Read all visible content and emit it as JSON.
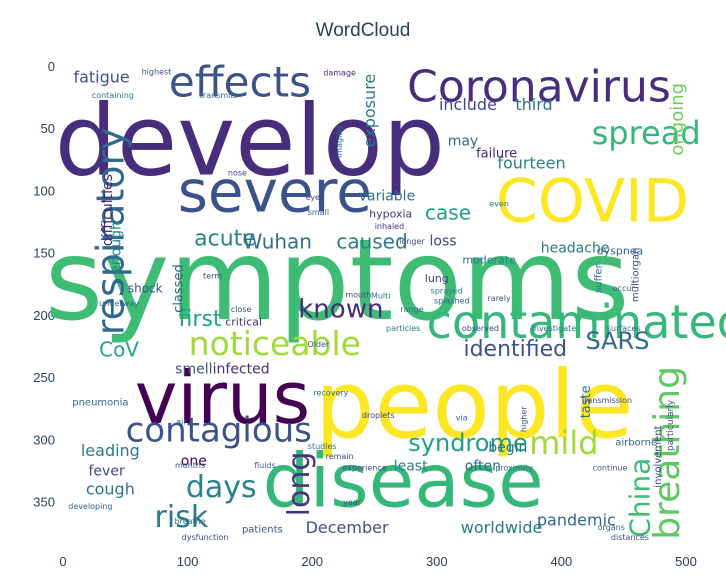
{
  "chart_data": {
    "type": "wordcloud",
    "title": "WordCloud",
    "xlim": [
      0,
      500
    ],
    "ylim": [
      380,
      0
    ],
    "x_ticks": [
      0,
      100,
      200,
      300,
      400,
      500
    ],
    "y_ticks": [
      0,
      50,
      100,
      150,
      200,
      250,
      300,
      350
    ],
    "grid": false,
    "colormap": "viridis",
    "words": [
      {
        "text": "symptoms",
        "x": 220,
        "y": 172,
        "color": "#3fbc73",
        "rot": 0
      },
      {
        "text": "develop",
        "x": 150,
        "y": 60,
        "color": "#472d7b",
        "rot": 0
      },
      {
        "text": "people",
        "x": 330,
        "y": 272,
        "color": "#fde725",
        "rot": 0
      },
      {
        "text": "disease",
        "x": 273,
        "y": 333,
        "color": "#35b779",
        "rot": 0
      },
      {
        "text": "virus",
        "x": 128,
        "y": 266,
        "color": "#440154",
        "rot": 0
      },
      {
        "text": "COVID",
        "x": 425,
        "y": 108,
        "color": "#fde725",
        "rot": 0
      },
      {
        "text": "severe",
        "x": 170,
        "y": 100,
        "color": "#3b528b",
        "rot": 0
      },
      {
        "text": "contaminated",
        "x": 420,
        "y": 205,
        "color": "#35b779",
        "rot": 0
      },
      {
        "text": "Coronavirus",
        "x": 382,
        "y": 16,
        "color": "#472d7b",
        "rot": 0
      },
      {
        "text": "effects",
        "x": 142,
        "y": 12,
        "color": "#3b528b",
        "rot": 0
      },
      {
        "text": "respiratory",
        "x": 38,
        "y": 132,
        "color": "#31688e",
        "rot": -90
      },
      {
        "text": "breathing",
        "x": 485,
        "y": 310,
        "color": "#5ec962",
        "rot": -90
      },
      {
        "text": "contagious",
        "x": 125,
        "y": 292,
        "color": "#3b528b",
        "rot": 0
      },
      {
        "text": "noticeable",
        "x": 170,
        "y": 222,
        "color": "#a0da39",
        "rot": 0
      },
      {
        "text": "spread",
        "x": 468,
        "y": 53,
        "color": "#35b779",
        "rot": 0
      },
      {
        "text": "mild",
        "x": 402,
        "y": 302,
        "color": "#a0da39",
        "rot": 0
      },
      {
        "text": "days",
        "x": 127,
        "y": 338,
        "color": "#26828e",
        "rot": 0
      },
      {
        "text": "risk",
        "x": 95,
        "y": 362,
        "color": "#2a788e",
        "rot": 0
      },
      {
        "text": "long",
        "x": 190,
        "y": 335,
        "color": "#46337e",
        "rot": -90
      },
      {
        "text": "China",
        "x": 463,
        "y": 346,
        "color": "#3fbc73",
        "rot": -90
      },
      {
        "text": "known",
        "x": 223,
        "y": 195,
        "color": "#472d7b",
        "rot": 0
      },
      {
        "text": "syndrome",
        "x": 325,
        "y": 302,
        "color": "#1fa187",
        "rot": 0
      },
      {
        "text": "SARS",
        "x": 445,
        "y": 220,
        "color": "#31688e",
        "rot": 0
      },
      {
        "text": "identified",
        "x": 363,
        "y": 227,
        "color": "#3b528b",
        "rot": 0
      },
      {
        "text": "first",
        "x": 110,
        "y": 203,
        "color": "#20a486",
        "rot": 0
      },
      {
        "text": "acute",
        "x": 130,
        "y": 138,
        "color": "#26828e",
        "rot": 0
      },
      {
        "text": "Wuhan",
        "x": 172,
        "y": 140,
        "color": "#2c728e",
        "rot": 0
      },
      {
        "text": "caused",
        "x": 248,
        "y": 140,
        "color": "#287c8e",
        "rot": 0
      },
      {
        "text": "case",
        "x": 309,
        "y": 117,
        "color": "#1f9e89",
        "rot": 0
      },
      {
        "text": "CoV",
        "x": 45,
        "y": 227,
        "color": "#22a884",
        "rot": 0
      },
      {
        "text": "ongoing",
        "x": 493,
        "y": 42,
        "color": "#6ece58",
        "rot": -90
      },
      {
        "text": "exposure",
        "x": 246,
        "y": 35,
        "color": "#2a788e",
        "rot": -90
      },
      {
        "text": "include",
        "x": 325,
        "y": 30,
        "color": "#3e4989",
        "rot": 0
      },
      {
        "text": "third",
        "x": 378,
        "y": 30,
        "color": "#2c728e",
        "rot": 0
      },
      {
        "text": "fourteen",
        "x": 376,
        "y": 77,
        "color": "#25848e",
        "rot": 0
      },
      {
        "text": "may",
        "x": 321,
        "y": 60,
        "color": "#31688e",
        "rot": 0
      },
      {
        "text": "variable",
        "x": 260,
        "y": 104,
        "color": "#2c728e",
        "rot": 0
      },
      {
        "text": "headache",
        "x": 411,
        "y": 146,
        "color": "#2a788e",
        "rot": 0
      },
      {
        "text": "loss",
        "x": 305,
        "y": 140,
        "color": "#3e4989",
        "rot": 0
      },
      {
        "text": "fatigue",
        "x": 31,
        "y": 8,
        "color": "#3b528b",
        "rot": 0
      },
      {
        "text": "difficulties",
        "x": 36,
        "y": 115,
        "color": "#482677",
        "rot": -90
      },
      {
        "text": "enough",
        "x": 43,
        "y": 145,
        "color": "#26828e",
        "rot": -90
      },
      {
        "text": "leading",
        "x": 38,
        "y": 308,
        "color": "#2a788e",
        "rot": 0
      },
      {
        "text": "fever",
        "x": 35,
        "y": 325,
        "color": "#3e4989",
        "rot": 0
      },
      {
        "text": "cough",
        "x": 38,
        "y": 339,
        "color": "#2c728e",
        "rot": 0
      },
      {
        "text": "smell",
        "x": 105,
        "y": 243,
        "color": "#3b528b",
        "rot": 0
      },
      {
        "text": "infected",
        "x": 143,
        "y": 243,
        "color": "#472d7b",
        "rot": 0
      },
      {
        "text": "December",
        "x": 228,
        "y": 370,
        "color": "#3b528b",
        "rot": 0
      },
      {
        "text": "worldwide",
        "x": 352,
        "y": 370,
        "color": "#2a788e",
        "rot": 0
      },
      {
        "text": "pandemic",
        "x": 412,
        "y": 364,
        "color": "#31688e",
        "rot": 0
      },
      {
        "text": "begin",
        "x": 357,
        "y": 306,
        "color": "#2c728e",
        "rot": 0
      },
      {
        "text": "least",
        "x": 279,
        "y": 321,
        "color": "#26828e",
        "rot": 0
      },
      {
        "text": "often",
        "x": 337,
        "y": 321,
        "color": "#31688e",
        "rot": 0
      },
      {
        "text": "one",
        "x": 105,
        "y": 317,
        "color": "#440154",
        "rot": 0
      },
      {
        "text": "taste",
        "x": 420,
        "y": 269,
        "color": "#2c728e",
        "rot": -90
      },
      {
        "text": "classed",
        "x": 93,
        "y": 178,
        "color": "#31688e",
        "rot": -90
      },
      {
        "text": "failure",
        "x": 348,
        "y": 70,
        "color": "#482677",
        "rot": 0
      },
      {
        "text": "hypoxia",
        "x": 263,
        "y": 118,
        "color": "#46337e",
        "rot": 0
      },
      {
        "text": "moderate",
        "x": 342,
        "y": 155,
        "color": "#2a788e",
        "rot": 0
      },
      {
        "text": "lung",
        "x": 300,
        "y": 170,
        "color": "#414487",
        "rot": 0
      },
      {
        "text": "dyspnea",
        "x": 447,
        "y": 148,
        "color": "#31688e",
        "rot": 0
      },
      {
        "text": "suffer",
        "x": 430,
        "y": 170,
        "color": "#2c728e",
        "rot": -90
      },
      {
        "text": "multiorgan",
        "x": 460,
        "y": 167,
        "color": "#3e4989",
        "rot": -90
      },
      {
        "text": "shock",
        "x": 66,
        "y": 178,
        "color": "#3b528b",
        "rot": 0
      },
      {
        "text": "critical",
        "x": 145,
        "y": 205,
        "color": "#472d7b",
        "rot": 0
      },
      {
        "text": "pneumonia",
        "x": 30,
        "y": 270,
        "color": "#31688e",
        "rot": 0
      },
      {
        "text": "involvement",
        "x": 478,
        "y": 313,
        "color": "#3e4989",
        "rot": -90
      },
      {
        "text": "particularly",
        "x": 488,
        "y": 288,
        "color": "#3b528b",
        "rot": -90
      },
      {
        "text": "airborne",
        "x": 460,
        "y": 302,
        "color": "#31688e",
        "rot": 0
      },
      {
        "text": "Transmission",
        "x": 436,
        "y": 268,
        "color": "#3e4989",
        "rot": 0
      },
      {
        "text": "highest",
        "x": 75,
        "y": 4,
        "color": "#3b528b",
        "rot": 0
      },
      {
        "text": "containing",
        "x": 40,
        "y": 23,
        "color": "#2a788e",
        "rot": 0
      },
      {
        "text": "transmits",
        "x": 125,
        "y": 23,
        "color": "#31688e",
        "rot": 0
      },
      {
        "text": "damage",
        "x": 222,
        "y": 5,
        "color": "#482677",
        "rot": 0
      },
      {
        "text": "nose",
        "x": 140,
        "y": 85,
        "color": "#3e4989",
        "rot": 0
      },
      {
        "text": "imaging",
        "x": 222,
        "y": 60,
        "color": "#2c728e",
        "rot": -90
      },
      {
        "text": "eyes",
        "x": 202,
        "y": 105,
        "color": "#3b528b",
        "rot": 0
      },
      {
        "text": "small",
        "x": 205,
        "y": 117,
        "color": "#31688e",
        "rot": 0
      },
      {
        "text": "inhaled",
        "x": 262,
        "y": 128,
        "color": "#46337e",
        "rot": 0
      },
      {
        "text": "longer",
        "x": 280,
        "y": 140,
        "color": "#3e4989",
        "rot": 0
      },
      {
        "text": "even",
        "x": 350,
        "y": 110,
        "color": "#2c728e",
        "rot": 0
      },
      {
        "text": "sprayed",
        "x": 308,
        "y": 180,
        "color": "#2a788e",
        "rot": 0
      },
      {
        "text": "splashed",
        "x": 312,
        "y": 188,
        "color": "#31688e",
        "rot": 0
      },
      {
        "text": "rarely",
        "x": 350,
        "y": 186,
        "color": "#3b528b",
        "rot": 0
      },
      {
        "text": "mouth",
        "x": 237,
        "y": 183,
        "color": "#3e4989",
        "rot": 0
      },
      {
        "text": "Multi",
        "x": 255,
        "y": 184,
        "color": "#2c728e",
        "rot": 0
      },
      {
        "text": "range",
        "x": 280,
        "y": 195,
        "color": "#31688e",
        "rot": 0
      },
      {
        "text": "occur",
        "x": 450,
        "y": 178,
        "color": "#3b528b",
        "rot": 0
      },
      {
        "text": "term",
        "x": 120,
        "y": 168,
        "color": "#3e4989",
        "rot": 0
      },
      {
        "text": "underway",
        "x": 45,
        "y": 190,
        "color": "#31688e",
        "rot": 0
      },
      {
        "text": "close",
        "x": 143,
        "y": 195,
        "color": "#3b528b",
        "rot": 0
      },
      {
        "text": "particles",
        "x": 273,
        "y": 210,
        "color": "#2a788e",
        "rot": 0
      },
      {
        "text": "observed",
        "x": 335,
        "y": 210,
        "color": "#3e4989",
        "rot": 0
      },
      {
        "text": "investigate",
        "x": 394,
        "y": 210,
        "color": "#2c728e",
        "rot": 0
      },
      {
        "text": "surfaces",
        "x": 450,
        "y": 210,
        "color": "#31688e",
        "rot": 0
      },
      {
        "text": "Older",
        "x": 205,
        "y": 223,
        "color": "#3b528b",
        "rot": 0
      },
      {
        "text": "recovery",
        "x": 215,
        "y": 262,
        "color": "#2c728e",
        "rot": 0
      },
      {
        "text": "droplets",
        "x": 253,
        "y": 280,
        "color": "#3e4989",
        "rot": 0
      },
      {
        "text": "via",
        "x": 320,
        "y": 282,
        "color": "#31688e",
        "rot": 0
      },
      {
        "text": "higher",
        "x": 370,
        "y": 283,
        "color": "#3b528b",
        "rot": -90
      },
      {
        "text": "air",
        "x": 95,
        "y": 285,
        "color": "#31688e",
        "rot": 0
      },
      {
        "text": "studies",
        "x": 208,
        "y": 305,
        "color": "#2c728e",
        "rot": 0
      },
      {
        "text": "remain",
        "x": 222,
        "y": 313,
        "color": "#3e4989",
        "rot": 0
      },
      {
        "text": "months",
        "x": 102,
        "y": 320,
        "color": "#3b528b",
        "rot": 0
      },
      {
        "text": "fluids",
        "x": 162,
        "y": 320,
        "color": "#31688e",
        "rot": 0
      },
      {
        "text": "experience",
        "x": 242,
        "y": 322,
        "color": "#3e4989",
        "rot": 0
      },
      {
        "text": "proximity",
        "x": 362,
        "y": 322,
        "color": "#2c728e",
        "rot": 0
      },
      {
        "text": "continue",
        "x": 439,
        "y": 322,
        "color": "#3b528b",
        "rot": 0
      },
      {
        "text": "developing",
        "x": 22,
        "y": 353,
        "color": "#31688e",
        "rot": 0
      },
      {
        "text": "year",
        "x": 232,
        "y": 350,
        "color": "#3e4989",
        "rot": 0
      },
      {
        "text": "breathe",
        "x": 102,
        "y": 365,
        "color": "#2c728e",
        "rot": 0
      },
      {
        "text": "patients",
        "x": 160,
        "y": 372,
        "color": "#3b528b",
        "rot": 0
      },
      {
        "text": "dysfunction",
        "x": 114,
        "y": 378,
        "color": "#3e4989",
        "rot": 0
      },
      {
        "text": "organs",
        "x": 440,
        "y": 370,
        "color": "#31688e",
        "rot": 0
      },
      {
        "text": "distances",
        "x": 455,
        "y": 378,
        "color": "#3b528b",
        "rot": 0
      }
    ]
  }
}
